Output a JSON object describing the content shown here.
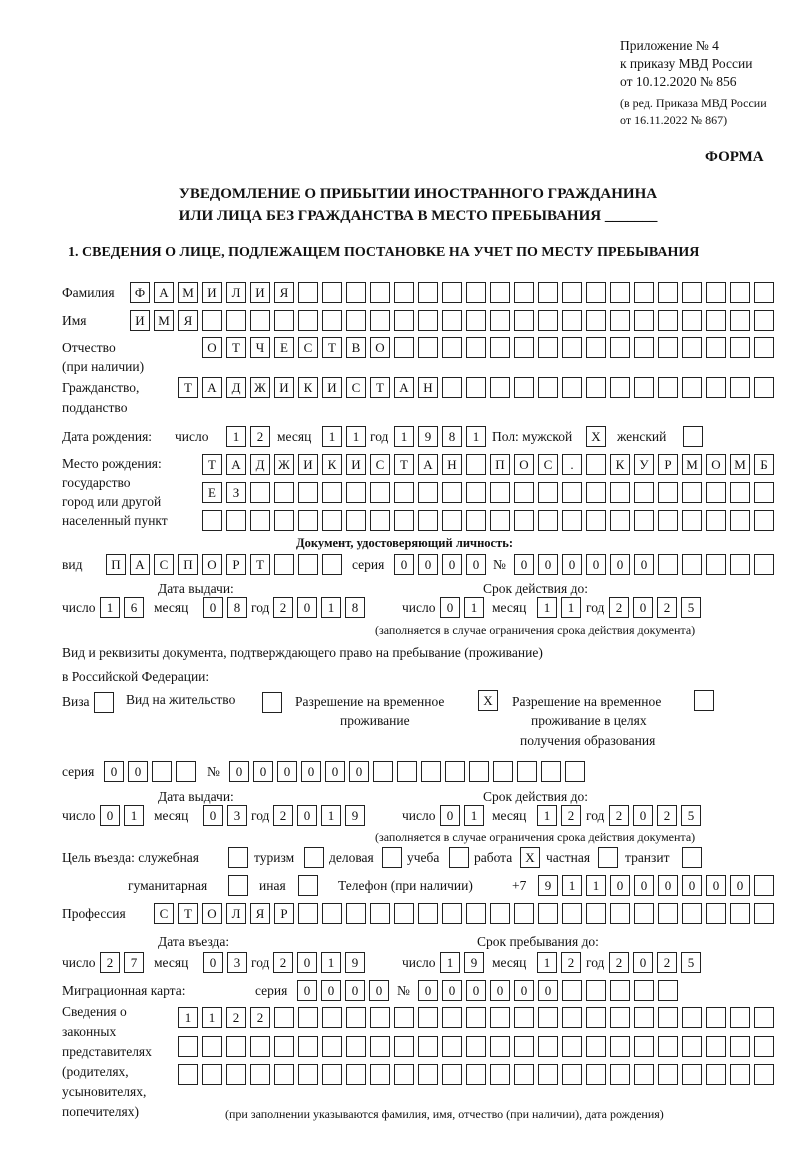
{
  "header": {
    "appendix": "Приложение № 4",
    "order": "к приказу МВД России",
    "order_date": "от 10.12.2020 № 856",
    "revision1": "(в ред. Приказа МВД России",
    "revision2": "от 16.11.2022 № 867)",
    "form_label": "ФОРМА",
    "title1": "УВЕДОМЛЕНИЕ О ПРИБЫТИИ ИНОСТРАННОГО ГРАЖДАНИНА",
    "title2": "ИЛИ ЛИЦА БЕЗ ГРАЖДАНСТВА В МЕСТО ПРЕБЫВАНИЯ _______",
    "section1": "1. СВЕДЕНИЯ О ЛИЦЕ, ПОДЛЕЖАЩЕМ ПОСТАНОВКЕ НА УЧЕТ ПО МЕСТУ ПРЕБЫВАНИЯ"
  },
  "labels": {
    "surname": "Фамилия",
    "name": "Имя",
    "patronymic1": "Отчество",
    "patronymic2": "(при наличии)",
    "citizenship1": "Гражданство,",
    "citizenship2": "подданство",
    "birth_date": "Дата рождения:",
    "day": "число",
    "month": "месяц",
    "year": "год",
    "sex": "Пол: мужской",
    "female": "женский",
    "birthplace1": "Место рождения:",
    "birthplace2": "государство",
    "birthplace3": "город или другой",
    "birthplace4": "населенный пункт",
    "id_doc": "Документ, удостоверяющий личность:",
    "kind": "вид",
    "series": "серия",
    "number": "№",
    "issue_date": "Дата выдачи:",
    "valid_until": "Срок действия до:",
    "valid_note": "(заполняется в случае ограничения срока действия документа)",
    "stay_doc1": "Вид и реквизиты документа, подтверждающего право на пребывание (проживание)",
    "stay_doc2": "в Российской Федерации:",
    "visa": "Виза",
    "residence": "Вид на жительство",
    "temp1": "Разрешение на временное",
    "temp2": "проживание",
    "temp_edu1": "Разрешение на временное",
    "temp_edu2": "проживание в целях",
    "temp_edu3": "получения образования",
    "purpose": "Цель въезда: служебная",
    "tourism": "туризм",
    "business": "деловая",
    "study": "учеба",
    "work": "работа",
    "private": "частная",
    "transit": "транзит",
    "humanitarian": "гуманитарная",
    "other": "иная",
    "phone": "Телефон (при наличии)",
    "phone_prefix": "+7",
    "profession": "Профессия",
    "entry_date": "Дата въезда:",
    "stay_until": "Срок пребывания до:",
    "migration_card": "Миграционная карта:",
    "reps1": "Сведения о",
    "reps2": "законных",
    "reps3": "представителях",
    "reps4": "(родителях,",
    "reps5": "усыновителях,",
    "reps6": "попечителях)",
    "reps_note": "(при заполнении указываются фамилия, имя, отчество (при наличии), дата рождения)"
  },
  "fields": {
    "surname": [
      "Ф",
      "А",
      "М",
      "И",
      "Л",
      "И",
      "Я",
      "",
      "",
      "",
      "",
      "",
      "",
      "",
      "",
      "",
      "",
      "",
      "",
      "",
      "",
      "",
      "",
      "",
      "",
      "",
      ""
    ],
    "name": [
      "И",
      "М",
      "Я",
      "",
      "",
      "",
      "",
      "",
      "",
      "",
      "",
      "",
      "",
      "",
      "",
      "",
      "",
      "",
      "",
      "",
      "",
      "",
      "",
      "",
      "",
      "",
      ""
    ],
    "patronymic": [
      "О",
      "Т",
      "Ч",
      "Е",
      "С",
      "Т",
      "В",
      "О",
      "",
      "",
      "",
      "",
      "",
      "",
      "",
      "",
      "",
      "",
      "",
      "",
      "",
      "",
      "",
      ""
    ],
    "citizenship": [
      "Т",
      "А",
      "Д",
      "Ж",
      "И",
      "К",
      "И",
      "С",
      "Т",
      "А",
      "Н",
      "",
      "",
      "",
      "",
      "",
      "",
      "",
      "",
      "",
      "",
      "",
      "",
      "",
      ""
    ],
    "birth_day": [
      "1",
      "2"
    ],
    "birth_month": [
      "1",
      "1"
    ],
    "birth_year": [
      "1",
      "9",
      "8",
      "1"
    ],
    "sex_male": [
      "X"
    ],
    "sex_female": [
      ""
    ],
    "birthplace1": [
      "Т",
      "А",
      "Д",
      "Ж",
      "И",
      "К",
      "И",
      "С",
      "Т",
      "А",
      "Н",
      "",
      "П",
      "О",
      "С",
      ".",
      "",
      "К",
      "У",
      "Р",
      "М",
      "О",
      "М",
      "Б"
    ],
    "birthplace2": [
      "Е",
      "З",
      "",
      "",
      "",
      "",
      "",
      "",
      "",
      "",
      "",
      "",
      "",
      "",
      "",
      "",
      "",
      "",
      "",
      "",
      "",
      "",
      "",
      ""
    ],
    "birthplace3": [
      "",
      "",
      "",
      "",
      "",
      "",
      "",
      "",
      "",
      "",
      "",
      "",
      "",
      "",
      "",
      "",
      "",
      "",
      "",
      "",
      "",
      "",
      "",
      ""
    ],
    "id_kind": [
      "П",
      "А",
      "С",
      "П",
      "О",
      "Р",
      "Т",
      "",
      "",
      ""
    ],
    "id_series": [
      "0",
      "0",
      "0",
      "0"
    ],
    "id_number": [
      "0",
      "0",
      "0",
      "0",
      "0",
      "0",
      "",
      "",
      "",
      "",
      ""
    ],
    "id_issue_day": [
      "1",
      "6"
    ],
    "id_issue_month": [
      "0",
      "8"
    ],
    "id_issue_year": [
      "2",
      "0",
      "1",
      "8"
    ],
    "id_valid_day": [
      "0",
      "1"
    ],
    "id_valid_month": [
      "1",
      "1"
    ],
    "id_valid_year": [
      "2",
      "0",
      "2",
      "5"
    ],
    "visa": [
      ""
    ],
    "residence": [
      ""
    ],
    "temp_residence": [
      "X"
    ],
    "temp_residence_edu": [
      ""
    ],
    "stay_series": [
      "0",
      "0",
      "",
      ""
    ],
    "stay_number": [
      "0",
      "0",
      "0",
      "0",
      "0",
      "0",
      "",
      "",
      "",
      "",
      "",
      "",
      "",
      "",
      ""
    ],
    "stay_issue_day": [
      "0",
      "1"
    ],
    "stay_issue_month": [
      "0",
      "3"
    ],
    "stay_issue_year": [
      "2",
      "0",
      "1",
      "9"
    ],
    "stay_valid_day": [
      "0",
      "1"
    ],
    "stay_valid_month": [
      "1",
      "2"
    ],
    "stay_valid_year": [
      "2",
      "0",
      "2",
      "5"
    ],
    "p_official": [
      ""
    ],
    "p_tourism": [
      ""
    ],
    "p_business": [
      ""
    ],
    "p_study": [
      ""
    ],
    "p_work": [
      "X"
    ],
    "p_private": [
      ""
    ],
    "p_transit": [
      ""
    ],
    "p_humanitarian": [
      ""
    ],
    "p_other": [
      ""
    ],
    "phone": [
      "9",
      "1",
      "1",
      "0",
      "0",
      "0",
      "0",
      "0",
      "0",
      ""
    ],
    "profession": [
      "С",
      "Т",
      "О",
      "Л",
      "Я",
      "Р",
      "",
      "",
      "",
      "",
      "",
      "",
      "",
      "",
      "",
      "",
      "",
      "",
      "",
      "",
      "",
      "",
      "",
      "",
      "",
      ""
    ],
    "entry_day": [
      "2",
      "7"
    ],
    "entry_month": [
      "0",
      "3"
    ],
    "entry_year": [
      "2",
      "0",
      "1",
      "9"
    ],
    "until_day": [
      "1",
      "9"
    ],
    "until_month": [
      "1",
      "2"
    ],
    "until_year": [
      "2",
      "0",
      "2",
      "5"
    ],
    "mc_series": [
      "0",
      "0",
      "0",
      "0"
    ],
    "mc_number": [
      "0",
      "0",
      "0",
      "0",
      "0",
      "0",
      "",
      "",
      "",
      "",
      ""
    ],
    "reps1": [
      "1",
      "1",
      "2",
      "2",
      "",
      "",
      "",
      "",
      "",
      "",
      "",
      "",
      "",
      "",
      "",
      "",
      "",
      "",
      "",
      "",
      "",
      "",
      "",
      "",
      ""
    ],
    "reps2": [
      "",
      "",
      "",
      "",
      "",
      "",
      "",
      "",
      "",
      "",
      "",
      "",
      "",
      "",
      "",
      "",
      "",
      "",
      "",
      "",
      "",
      "",
      "",
      "",
      ""
    ],
    "reps3": [
      "",
      "",
      "",
      "",
      "",
      "",
      "",
      "",
      "",
      "",
      "",
      "",
      "",
      "",
      "",
      "",
      "",
      "",
      "",
      "",
      "",
      "",
      "",
      "",
      ""
    ]
  }
}
